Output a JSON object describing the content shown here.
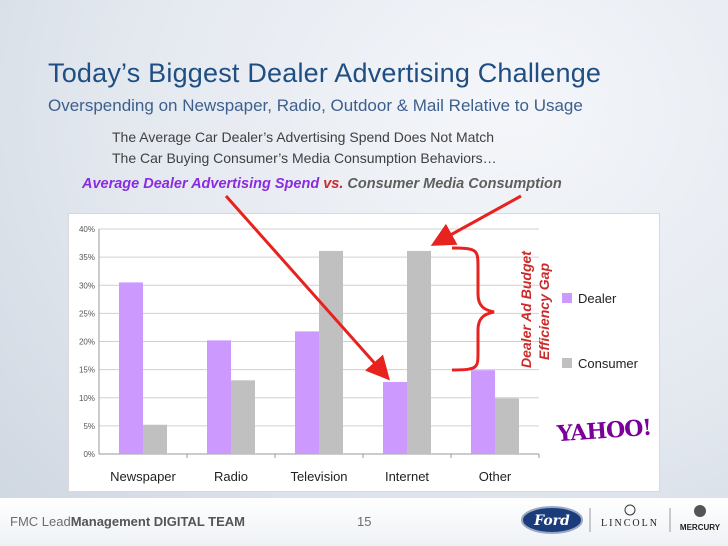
{
  "slide": {
    "title": "Today’s Biggest Dealer Advertising Challenge",
    "subtitle": "Overspending on Newspaper, Radio, Outdoor & Mail Relative to Usage",
    "note_line1": "The Average Car Dealer’s Advertising Spend Does Not Match",
    "note_line2": "The Car Buying Consumer’s Media Consumption Behaviors…",
    "headline_dealer": "Average Dealer Advertising Spend",
    "headline_vs": "vs.",
    "headline_consumer": "Consumer Media Consumption",
    "annotation_line1": "Dealer Ad Budget",
    "annotation_line2": "Efficiency Gap",
    "yahoo_logo": "YAHOO!"
  },
  "footer": {
    "team_prefix": "FMC Lead",
    "team_bold": "Management DIGITAL TEAM",
    "page_number": "15",
    "logo_ford": "Ford",
    "logo_lincoln": "LINCOLN",
    "logo_mercury": "MERCURY"
  },
  "colors": {
    "dealer": "#cc99ff",
    "consumer": "#c0c0c0",
    "arrow": "#e8221f",
    "title": "#1f4e82"
  },
  "chart_data": {
    "type": "bar",
    "categories": [
      "Newspaper",
      "Radio",
      "Television",
      "Internet",
      "Other"
    ],
    "series": [
      {
        "name": "Dealer",
        "values": [
          0.305,
          0.202,
          0.218,
          0.128,
          0.149
        ]
      },
      {
        "name": "Consumer",
        "values": [
          0.052,
          0.131,
          0.361,
          0.361,
          0.099
        ]
      }
    ],
    "yticks": [
      "0%",
      "5%",
      "10%",
      "15%",
      "20%",
      "25%",
      "30%",
      "35%",
      "40%"
    ],
    "ylim": [
      0,
      0.4
    ],
    "grid": true,
    "legend": "right",
    "xlabel": "",
    "ylabel": ""
  }
}
